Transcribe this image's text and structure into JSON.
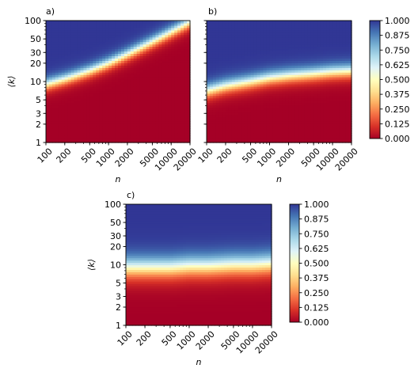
{
  "chart_data": [
    {
      "panel_label": "a)",
      "type": "heatmap",
      "xlabel": "n",
      "ylabel": "⟨k⟩",
      "x_scale": "log",
      "y_scale": "log",
      "xlim": [
        100,
        20000
      ],
      "ylim": [
        1,
        100
      ],
      "x_ticks": [
        "100",
        "200",
        "500",
        "1000",
        "2000",
        "5000",
        "10000",
        "20000"
      ],
      "y_ticks": [
        "1",
        "2",
        "3",
        "5",
        "10",
        "20",
        "30",
        "50",
        "100"
      ],
      "transition_k_at_0_5": {
        "n": [
          100,
          200,
          500,
          1000,
          2000,
          5000,
          10000,
          20000
        ],
        "k": [
          9,
          11,
          15,
          20,
          28,
          45,
          65,
          95
        ]
      },
      "transition_width": 0.12
    },
    {
      "panel_label": "b)",
      "type": "heatmap",
      "xlabel": "n",
      "ylabel": "",
      "x_scale": "log",
      "y_scale": "log",
      "xlim": [
        100,
        20000
      ],
      "ylim": [
        1,
        100
      ],
      "x_ticks": [
        "100",
        "200",
        "500",
        "1000",
        "2000",
        "5000",
        "10000",
        "20000"
      ],
      "y_ticks": [],
      "transition_k_at_0_5": {
        "n": [
          100,
          200,
          500,
          1000,
          2000,
          5000,
          10000,
          20000
        ],
        "k": [
          7,
          8.5,
          10,
          11.5,
          12.5,
          13.5,
          14.5,
          15
        ]
      },
      "transition_width": 0.14
    },
    {
      "panel_label": "c)",
      "type": "heatmap",
      "xlabel": "n",
      "ylabel": "⟨k⟩",
      "x_scale": "log",
      "y_scale": "log",
      "xlim": [
        100,
        20000
      ],
      "ylim": [
        1,
        100
      ],
      "x_ticks": [
        "100",
        "200",
        "500",
        "1000",
        "2000",
        "5000",
        "10000",
        "20000"
      ],
      "y_ticks": [
        "1",
        "2",
        "3",
        "5",
        "10",
        "20",
        "30",
        "50",
        "100"
      ],
      "transition_k_at_0_5": {
        "n": [
          100,
          200,
          500,
          1000,
          2000,
          5000,
          10000,
          20000
        ],
        "k": [
          9,
          9,
          9,
          9.5,
          9.5,
          10,
          10,
          10.5
        ]
      },
      "transition_width": 0.22
    }
  ],
  "colorbars": [
    {
      "ticks": [
        "1.000",
        "0.875",
        "0.750",
        "0.625",
        "0.500",
        "0.375",
        "0.250",
        "0.125",
        "0.000"
      ],
      "colormap": "RdYlBu"
    },
    {
      "ticks": [
        "1.000",
        "0.875",
        "0.750",
        "0.625",
        "0.500",
        "0.375",
        "0.250",
        "0.125",
        "0.000"
      ],
      "colormap": "RdYlBu"
    }
  ],
  "colors": {
    "low": "#a50026",
    "mid": "#ffffbf",
    "high": "#313695"
  }
}
